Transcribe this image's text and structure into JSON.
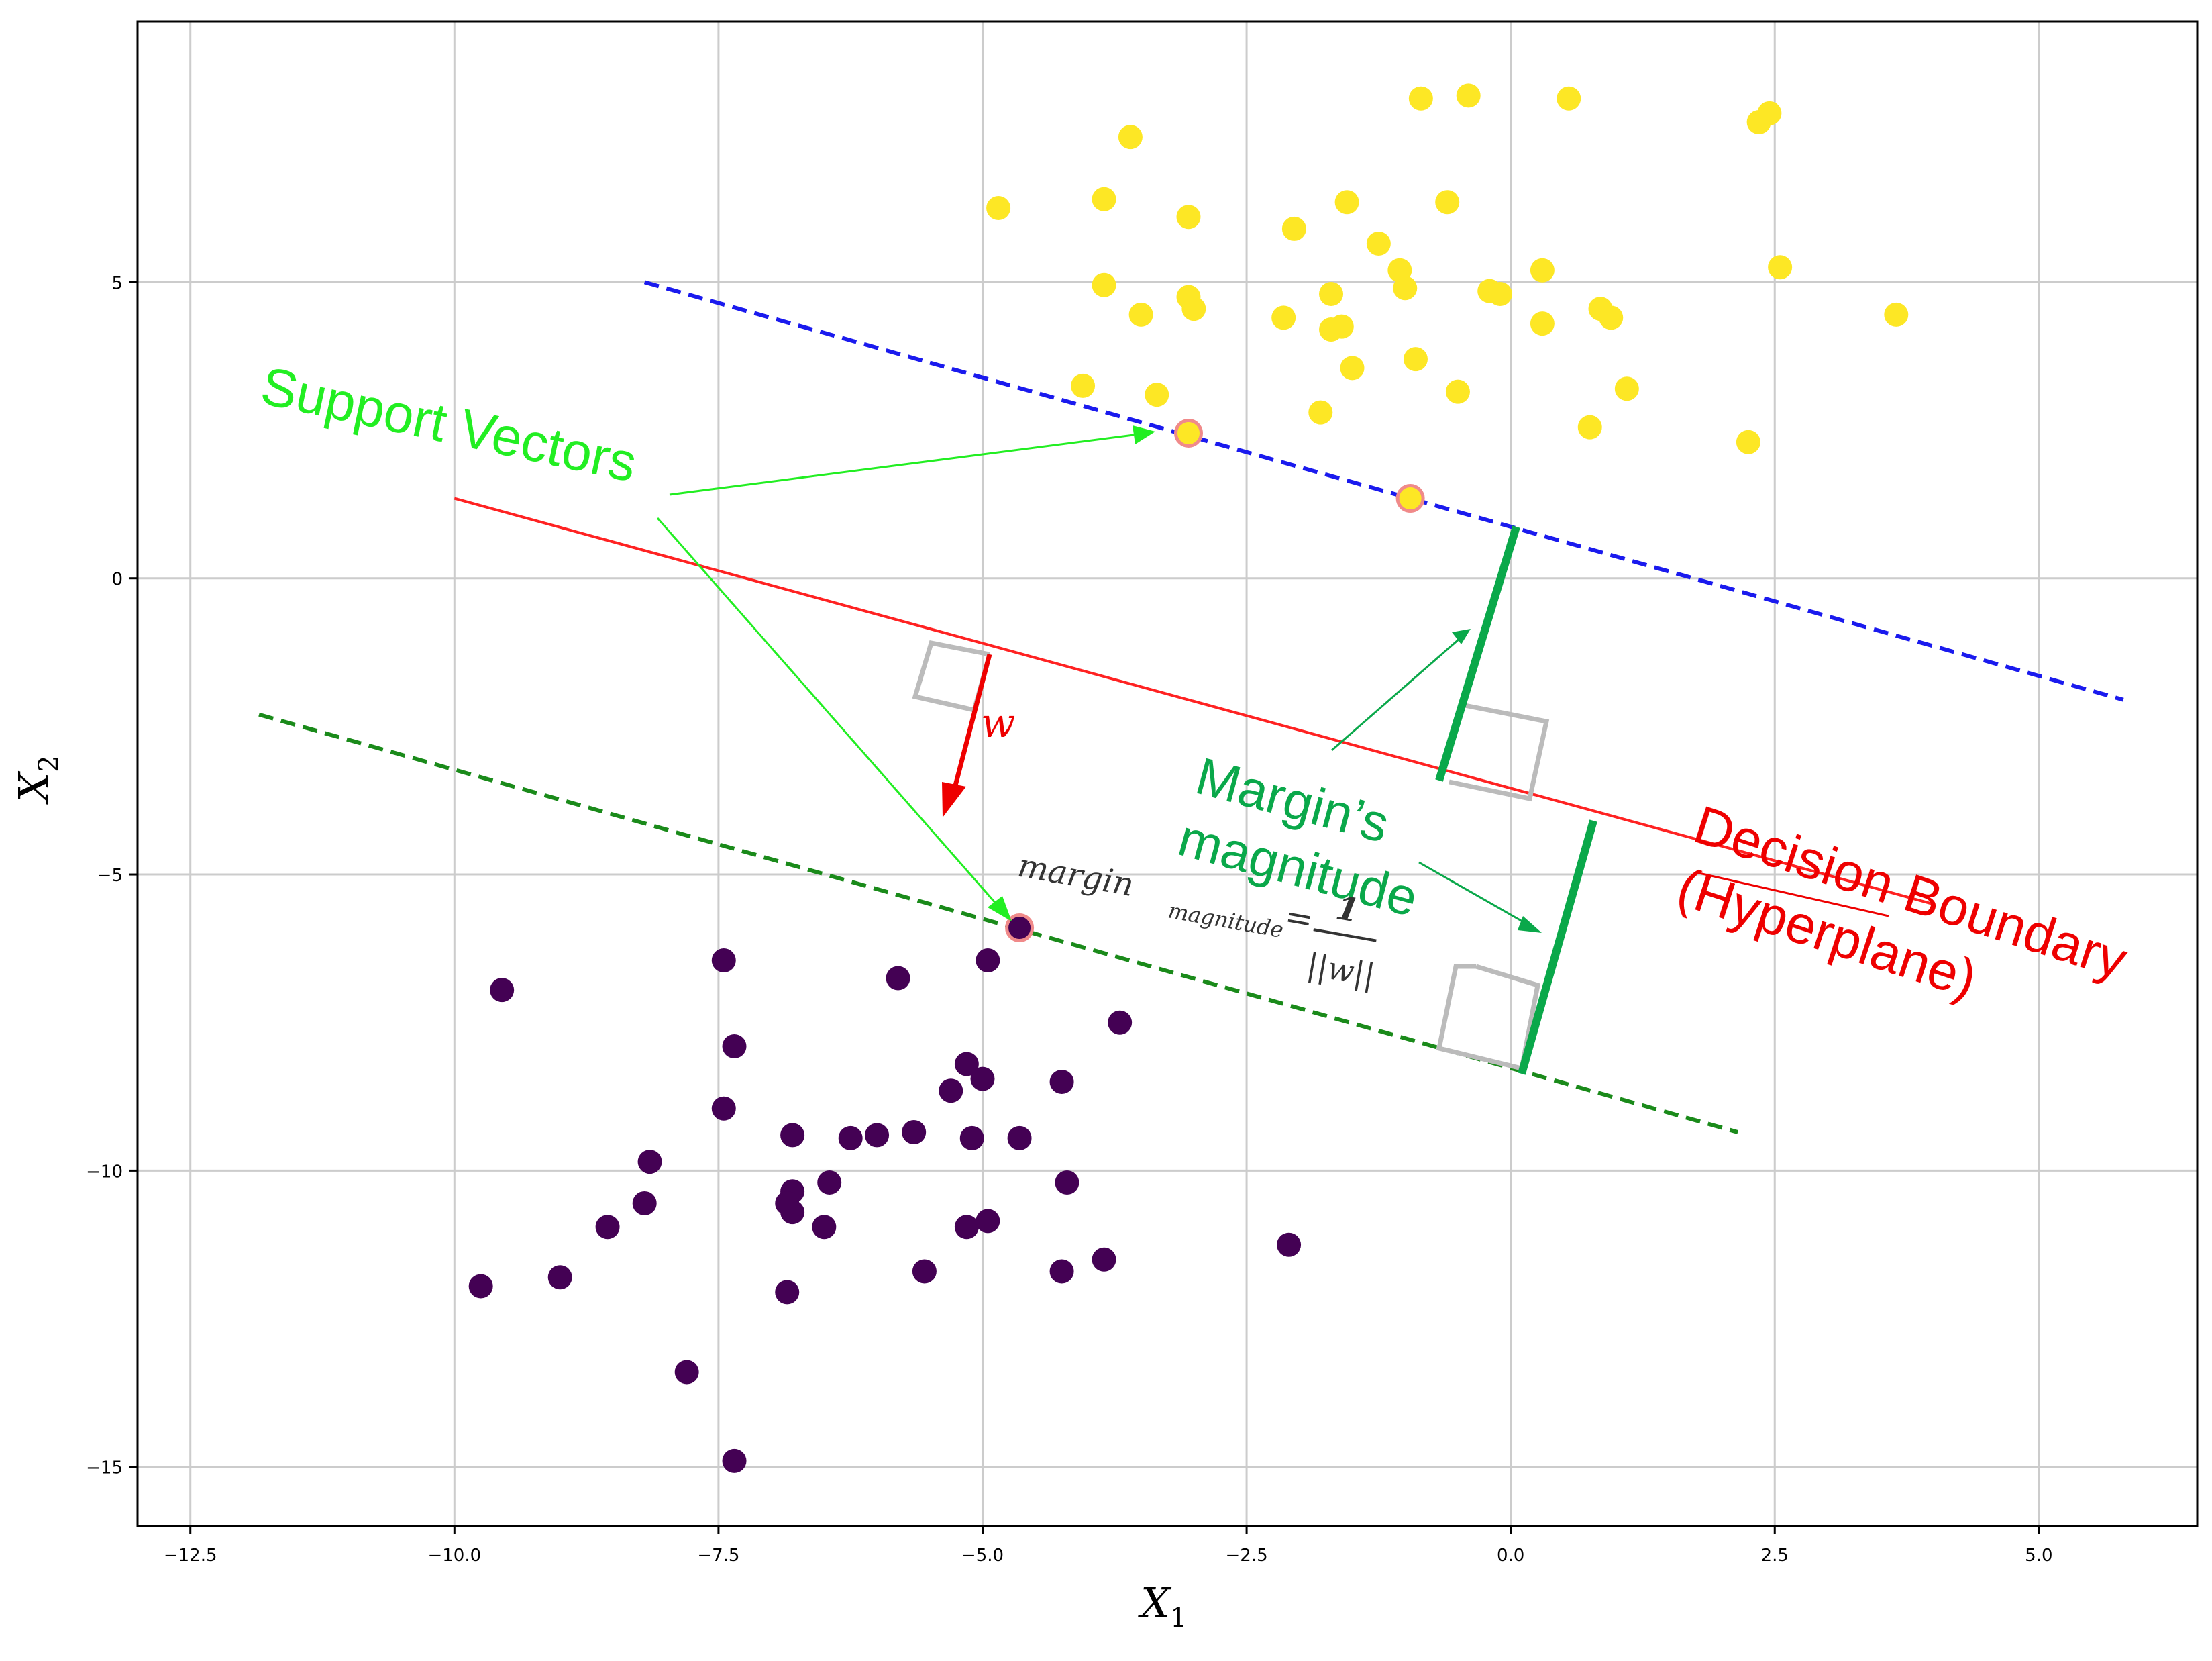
{
  "chart_data": {
    "type": "scatter",
    "title": "",
    "xlabel": "X",
    "xlabel_sub": "1",
    "ylabel": "X",
    "ylabel_sub": "2",
    "xlim": [
      -13.0,
      6.5
    ],
    "ylim": [
      -16.0,
      9.4
    ],
    "xticks": [
      -12.5,
      -10.0,
      -7.5,
      -5.0,
      -2.5,
      0.0,
      2.5,
      5.0
    ],
    "xtick_labels": [
      "−12.5",
      "−10.0",
      "−7.5",
      "−5.0",
      "−2.5",
      "0.0",
      "2.5",
      "5.0"
    ],
    "yticks": [
      5,
      0,
      -5,
      -10,
      -15
    ],
    "ytick_labels": [
      "5",
      "0",
      "−5",
      "−10",
      "−15"
    ],
    "grid": true,
    "series": [
      {
        "color": "#fde725",
        "points": [
          [
            -4.85,
            6.25
          ],
          [
            -3.85,
            6.4
          ],
          [
            -3.6,
            7.45
          ],
          [
            -3.05,
            6.1
          ],
          [
            -3.85,
            4.95
          ],
          [
            -3.5,
            4.45
          ],
          [
            -3.05,
            4.75
          ],
          [
            -3.0,
            4.55
          ],
          [
            -4.05,
            3.25
          ],
          [
            -3.35,
            3.1
          ],
          [
            -2.05,
            5.9
          ],
          [
            -1.55,
            6.35
          ],
          [
            -1.25,
            5.65
          ],
          [
            -1.05,
            5.2
          ],
          [
            -1.0,
            4.9
          ],
          [
            -2.15,
            4.4
          ],
          [
            -1.7,
            4.8
          ],
          [
            -1.7,
            4.2
          ],
          [
            -1.6,
            4.25
          ],
          [
            -1.5,
            3.55
          ],
          [
            -0.9,
            3.7
          ],
          [
            -1.8,
            2.8
          ],
          [
            -0.5,
            3.15
          ],
          [
            -0.85,
            8.1
          ],
          [
            -0.4,
            8.15
          ],
          [
            0.55,
            8.1
          ],
          [
            -0.6,
            6.35
          ],
          [
            0.3,
            5.2
          ],
          [
            -0.2,
            4.85
          ],
          [
            -0.1,
            4.8
          ],
          [
            0.3,
            4.3
          ],
          [
            0.85,
            4.55
          ],
          [
            0.95,
            4.4
          ],
          [
            0.75,
            2.55
          ],
          [
            1.1,
            3.2
          ],
          [
            2.25,
            2.3
          ],
          [
            2.35,
            7.7
          ],
          [
            2.45,
            7.85
          ],
          [
            2.55,
            5.25
          ],
          [
            3.65,
            4.45
          ]
        ]
      },
      {
        "color": "#440154",
        "points": [
          [
            -9.55,
            -6.95
          ],
          [
            -7.45,
            -6.45
          ],
          [
            -7.35,
            -7.9
          ],
          [
            -7.45,
            -8.95
          ],
          [
            -8.15,
            -9.85
          ],
          [
            -8.2,
            -10.55
          ],
          [
            -8.55,
            -10.95
          ],
          [
            -9.75,
            -11.95
          ],
          [
            -9.0,
            -11.8
          ],
          [
            -7.8,
            -13.4
          ],
          [
            -7.35,
            -14.9
          ],
          [
            -6.85,
            -12.05
          ],
          [
            -6.8,
            -9.4
          ],
          [
            -6.8,
            -10.35
          ],
          [
            -6.8,
            -10.7
          ],
          [
            -6.85,
            -10.55
          ],
          [
            -6.45,
            -10.2
          ],
          [
            -6.5,
            -10.95
          ],
          [
            -6.25,
            -9.45
          ],
          [
            -6.0,
            -9.4
          ],
          [
            -5.8,
            -6.75
          ],
          [
            -5.65,
            -9.35
          ],
          [
            -5.3,
            -8.65
          ],
          [
            -5.15,
            -8.2
          ],
          [
            -5.0,
            -8.45
          ],
          [
            -5.1,
            -9.45
          ],
          [
            -5.15,
            -10.95
          ],
          [
            -4.95,
            -10.85
          ],
          [
            -4.65,
            -9.45
          ],
          [
            -4.95,
            -6.45
          ],
          [
            -5.55,
            -11.7
          ],
          [
            -4.25,
            -8.5
          ],
          [
            -4.25,
            -11.7
          ],
          [
            -4.2,
            -10.2
          ],
          [
            -3.85,
            -11.5
          ],
          [
            -3.7,
            -7.5
          ],
          [
            -2.1,
            -11.25
          ]
        ]
      }
    ],
    "support_vectors": [
      [
        -3.05,
        2.45
      ],
      [
        -0.95,
        1.35
      ],
      [
        -4.65,
        -5.9
      ]
    ],
    "lines": [
      {
        "name": "decision_boundary",
        "color": "#ff2222",
        "style": "solid",
        "points": [
          [
            -10.0,
            1.35
          ],
          [
            4.0,
            -5.5
          ]
        ]
      },
      {
        "name": "upper_margin",
        "color": "#1a1aee",
        "style": "dashed",
        "points": [
          [
            -8.2,
            5.0
          ],
          [
            5.8,
            -2.05
          ]
        ]
      },
      {
        "name": "lower_margin",
        "color": "#1a8a1a",
        "style": "dashed",
        "points": [
          [
            -11.85,
            -2.3
          ],
          [
            2.15,
            -9.35
          ]
        ]
      }
    ]
  },
  "annotations": {
    "support_vectors": "Support Vectors",
    "w": "w",
    "margin_line1": "Margin’s",
    "margin_line2": "magnitude",
    "decision_line1": "Decision Boundary",
    "decision_line2": "(Hyperplane)",
    "formula_lhs": "margin",
    "formula_sub": "magnitude",
    "formula_eq": "=",
    "formula_num": "1",
    "formula_den": "||w||"
  },
  "colors": {
    "annotation_green": "#22ee22",
    "margin_green": "#0aa84a",
    "red": "#ee0000",
    "box_gray": "#bbbbbb"
  }
}
